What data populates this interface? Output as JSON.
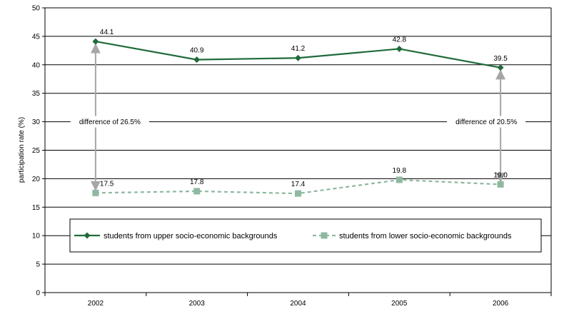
{
  "chart_data": {
    "type": "line",
    "categories": [
      "2002",
      "2003",
      "2004",
      "2005",
      "2006"
    ],
    "ylabel": "participation rate (%)",
    "xlabel": "",
    "ylim": [
      0,
      50
    ],
    "yticks": [
      0,
      5,
      10,
      15,
      20,
      25,
      30,
      35,
      40,
      45,
      50
    ],
    "grid": true,
    "legend_position": "inside-bottom",
    "series": [
      {
        "name": "students from upper socio-economic backgrounds",
        "values": [
          44.1,
          40.9,
          41.2,
          42.8,
          39.5
        ],
        "labels": [
          "44.1",
          "40.9",
          "41.2",
          "42.8",
          "39.5"
        ],
        "color": "#1f6b3a",
        "marker": "diamond",
        "line_style": "solid"
      },
      {
        "name": "students from lower socio-economic backgrounds",
        "values": [
          17.5,
          17.8,
          17.4,
          19.8,
          19.0
        ],
        "labels": [
          "17.5",
          "17.8",
          "17.4",
          "19.8",
          "19.0"
        ],
        "color": "#8fb8a0",
        "marker": "square",
        "line_style": "dashed"
      }
    ],
    "annotations": [
      {
        "text": "difference of 26.5%",
        "category": "2002",
        "from": 17.5,
        "to": 44.1
      },
      {
        "text": "difference of 20.5%",
        "category": "2006",
        "from": 19.0,
        "to": 39.5
      }
    ],
    "arrow_color": "#a6a6a6"
  }
}
